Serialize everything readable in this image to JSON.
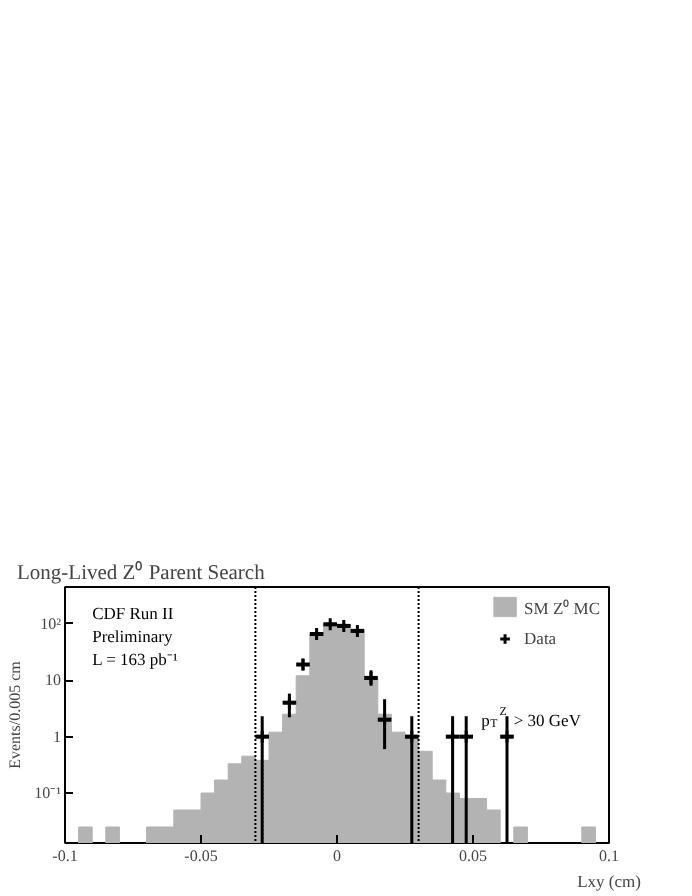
{
  "chart_data": {
    "type": "histogram",
    "title": "Long-Lived Z⁰ Parent Search",
    "xlabel": "Lxy (cm)",
    "ylabel": "Events/0.005 cm",
    "annotations": [
      "CDF Run II",
      "Preliminary",
      "L = 163 pb⁻¹",
      "p$_{T}$$^{Z}$ > 30 GeV"
    ],
    "bins": [
      -0.1,
      -0.095,
      -0.09,
      -0.085,
      -0.08,
      -0.075,
      -0.07,
      -0.065,
      -0.06,
      -0.055,
      -0.05,
      -0.045,
      -0.04,
      -0.035,
      -0.03,
      -0.025,
      -0.02,
      -0.015,
      -0.01,
      -0.005,
      0,
      0.005,
      0.01,
      0.015,
      0.02,
      0.025,
      0.03,
      0.035,
      0.04,
      0.045,
      0.05,
      0.055,
      0.06,
      0.065,
      0.07,
      0.075,
      0.08,
      0.085,
      0.09,
      0.095,
      0.1
    ],
    "series": [
      {
        "name": "SM Z⁰ MC",
        "color": "#b3b3b3",
        "values": [
          null,
          0.025,
          null,
          0.025,
          null,
          null,
          0.025,
          0.025,
          0.05,
          0.05,
          0.1,
          0.17,
          0.33,
          0.45,
          0.38,
          1.2,
          2.5,
          12,
          66,
          100,
          95,
          76,
          11,
          2.5,
          1.2,
          1.0,
          0.55,
          0.17,
          0.1,
          0.08,
          0.08,
          0.05,
          null,
          0.025,
          null,
          null,
          null,
          null,
          0.025,
          null
        ]
      },
      {
        "name": "Data",
        "type": "scatter",
        "color": "#000000",
        "marker": "cross",
        "x": [
          -0.0275,
          -0.0175,
          -0.0125,
          -0.0075,
          -0.0025,
          0.0025,
          0.0075,
          0.0125,
          0.0175,
          0.0275,
          0.0425,
          0.0475,
          0.0625
        ],
        "values": [
          1,
          4,
          19,
          66,
          98,
          92,
          75,
          11,
          2,
          1,
          1,
          1,
          1
        ],
        "errors": [
          [
            0.013,
            2.3
          ],
          [
            2.2,
            5.8
          ],
          [
            15,
            24
          ],
          [
            58,
            74
          ],
          [
            88,
            108
          ],
          [
            83,
            102
          ],
          [
            67,
            84
          ],
          [
            8,
            15
          ],
          [
            0.6,
            4.6
          ],
          [
            0.013,
            2.3
          ],
          [
            0.013,
            2.3
          ],
          [
            0.013,
            2.3
          ],
          [
            0.013,
            2.3
          ]
        ],
        "xerrors": [
          0.0025,
          0.0025,
          0.0025,
          0.0025,
          0.0025,
          0.0025,
          0.0025,
          0.0025,
          0.0025,
          0.0025,
          0.0025,
          0.0025,
          0.0025
        ]
      }
    ],
    "ref_lines": [
      {
        "axis": "x",
        "value": -0.03,
        "line_style": "dotted",
        "color": "#000000"
      },
      {
        "axis": "x",
        "value": 0.03,
        "line_style": "dotted",
        "color": "#000000"
      }
    ],
    "xlim": [
      -0.1,
      0.1
    ],
    "xticks": [
      -0.1,
      -0.05,
      0,
      0.05,
      0.1
    ],
    "ylim": [
      0.013,
      450
    ],
    "yticks": [
      {
        "value": 0.1,
        "label": "10⁻¹"
      },
      1,
      10,
      {
        "value": 100,
        "label": "10²"
      }
    ],
    "log": "y",
    "grid": false,
    "legend": "top right"
  }
}
